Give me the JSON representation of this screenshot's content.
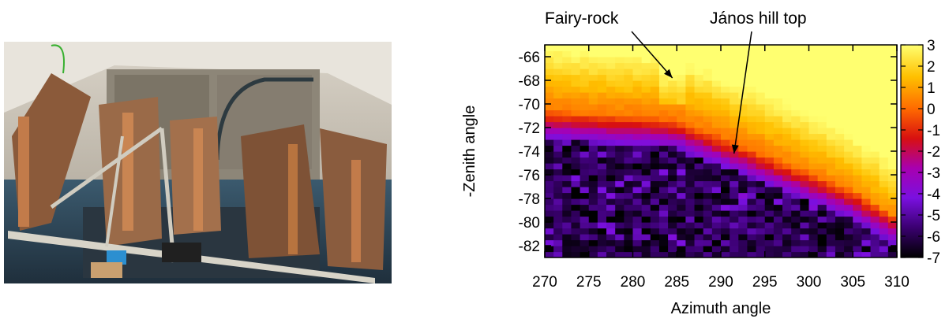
{
  "chart_data": {
    "type": "heatmap",
    "title": "",
    "xlabel": "Azimuth angle",
    "ylabel": "-Zenith angle",
    "xlim": [
      270,
      310
    ],
    "ylim": [
      -83,
      -65
    ],
    "x_ticks": [
      270,
      275,
      280,
      285,
      290,
      295,
      300,
      305,
      310
    ],
    "y_ticks": [
      -66,
      -68,
      -70,
      -72,
      -74,
      -76,
      -78,
      -80,
      -82
    ],
    "colorbar": {
      "range": [
        -7,
        3
      ],
      "ticks": [
        3,
        2,
        1,
        0,
        -1,
        -2,
        -3,
        -4,
        -5,
        -6,
        -7
      ],
      "colors": [
        "#000000",
        "#5a00b0",
        "#8a20f0",
        "#b00070",
        "#e62000",
        "#ff8c00",
        "#ffd000",
        "#ffff60"
      ]
    },
    "annotations": [
      {
        "text": "Fairy-rock",
        "points_to": [
          284.5,
          -67.8
        ]
      },
      {
        "text": "János hill top",
        "points_to": [
          291.5,
          -74.2
        ]
      }
    ]
  }
}
